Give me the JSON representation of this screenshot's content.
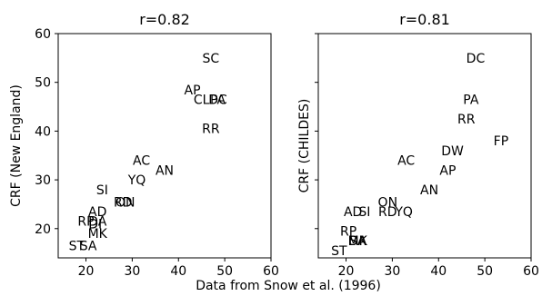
{
  "figure": {
    "caption": "Data from Snow et al. (1996)"
  },
  "chart_data": [
    {
      "type": "scatter",
      "title": "r=0.82",
      "xlabel": "",
      "ylabel": "CRF (New England)",
      "xlim": [
        14,
        60
      ],
      "ylim": [
        14,
        60
      ],
      "xticks": [
        20,
        30,
        40,
        50,
        60
      ],
      "yticks": [
        20,
        30,
        40,
        50,
        60
      ],
      "grid": false,
      "marker": "text-label",
      "points": [
        {
          "label": "SC",
          "x": 47,
          "y": 55
        },
        {
          "label": "AP",
          "x": 43,
          "y": 48.5
        },
        {
          "label": "CL",
          "x": 45,
          "y": 46.5
        },
        {
          "label": "DC",
          "x": 48.5,
          "y": 46.5
        },
        {
          "label": "PA",
          "x": 48.5,
          "y": 46.5
        },
        {
          "label": "RR",
          "x": 47,
          "y": 40.5
        },
        {
          "label": "AC",
          "x": 32,
          "y": 34
        },
        {
          "label": "AN",
          "x": 37,
          "y": 32
        },
        {
          "label": "YQ",
          "x": 31,
          "y": 30
        },
        {
          "label": "SI",
          "x": 23.5,
          "y": 28
        },
        {
          "label": "RD",
          "x": 28,
          "y": 25.5
        },
        {
          "label": "ON",
          "x": 28.5,
          "y": 25.5
        },
        {
          "label": "AD",
          "x": 22.5,
          "y": 23.5
        },
        {
          "label": "RP",
          "x": 20,
          "y": 21.5
        },
        {
          "label": "DA",
          "x": 22.5,
          "y": 21.5
        },
        {
          "label": "DI",
          "x": 22,
          "y": 21
        },
        {
          "label": "MK",
          "x": 22.5,
          "y": 19
        },
        {
          "label": "ST",
          "x": 18,
          "y": 16.5
        },
        {
          "label": "SA",
          "x": 20.5,
          "y": 16.5
        }
      ]
    },
    {
      "type": "scatter",
      "title": "r=0.81",
      "xlabel": "",
      "ylabel": "CRF (CHILDES)",
      "xlim": [
        14,
        60
      ],
      "ylim": [
        14,
        60
      ],
      "xticks": [
        20,
        30,
        40,
        50,
        60
      ],
      "yticks": [],
      "grid": false,
      "marker": "text-label",
      "points": [
        {
          "label": "DC",
          "x": 48,
          "y": 55
        },
        {
          "label": "PA",
          "x": 47,
          "y": 46.5
        },
        {
          "label": "RR",
          "x": 46,
          "y": 42.5
        },
        {
          "label": "FP",
          "x": 53.5,
          "y": 38
        },
        {
          "label": "DW",
          "x": 43,
          "y": 36
        },
        {
          "label": "AC",
          "x": 33,
          "y": 34
        },
        {
          "label": "AP",
          "x": 42,
          "y": 32
        },
        {
          "label": "AN",
          "x": 38,
          "y": 28
        },
        {
          "label": "ON",
          "x": 29,
          "y": 25.5
        },
        {
          "label": "AD",
          "x": 21.5,
          "y": 23.5
        },
        {
          "label": "SI",
          "x": 24,
          "y": 23.5
        },
        {
          "label": "RD",
          "x": 29,
          "y": 23.5
        },
        {
          "label": "YQ",
          "x": 32.5,
          "y": 23.5
        },
        {
          "label": "RP",
          "x": 20.5,
          "y": 19.5
        },
        {
          "label": "DA",
          "x": 22.5,
          "y": 17.5
        },
        {
          "label": "MK",
          "x": 22.5,
          "y": 17.5
        },
        {
          "label": "SA",
          "x": 22.5,
          "y": 17.5
        },
        {
          "label": "ST",
          "x": 18.5,
          "y": 15.5
        }
      ]
    }
  ]
}
